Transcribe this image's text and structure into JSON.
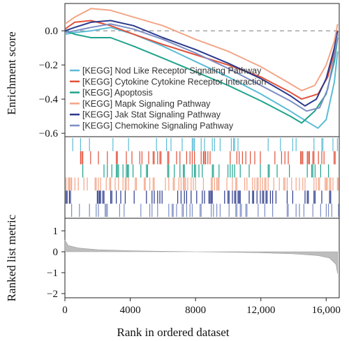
{
  "chart_data": {
    "type": "line",
    "x_label": "Rank in ordered dataset",
    "x_ticks": [
      0,
      4000,
      8000,
      12000,
      16000
    ],
    "x_tick_labels": [
      "0",
      "4000",
      "8000",
      "12,000",
      "16,000"
    ],
    "xlim": [
      0,
      16800
    ],
    "enrichment": {
      "ylabel": "Enrichment score",
      "ylim": [
        -0.62,
        0.16
      ],
      "y_ticks": [
        0.0,
        -0.2,
        -0.4,
        -0.6
      ],
      "y_tick_labels": [
        "0.0",
        "−0.2",
        "−0.4",
        "−0.6"
      ],
      "zero_line": true,
      "legend_position": "bottom-right",
      "series": [
        {
          "name": "[KEGG] Nod Like Receptor Signaling Pathway",
          "color": "#5bbcd6",
          "x": [
            0,
            600,
            1600,
            2800,
            4200,
            6000,
            8000,
            10000,
            12000,
            13800,
            14800,
            15500,
            16000,
            16500,
            16700
          ],
          "y": [
            -0.02,
            -0.01,
            0.0,
            0.02,
            -0.02,
            -0.09,
            -0.18,
            -0.27,
            -0.37,
            -0.47,
            -0.53,
            -0.57,
            -0.52,
            -0.3,
            -0.12
          ]
        },
        {
          "name": "[KEGG] Cytokine Cytokine Receptor Interaction",
          "color": "#e2513a",
          "x": [
            0,
            600,
            1600,
            2800,
            4200,
            6000,
            8000,
            10000,
            12000,
            13800,
            14500,
            15500,
            16100,
            16500,
            16700
          ],
          "y": [
            0.01,
            0.05,
            0.06,
            0.03,
            -0.02,
            -0.08,
            -0.14,
            -0.2,
            -0.27,
            -0.36,
            -0.4,
            -0.37,
            -0.27,
            -0.12,
            0.0
          ]
        },
        {
          "name": "[KEGG] Apoptosis",
          "color": "#1fa38c",
          "x": [
            0,
            600,
            1600,
            2800,
            4200,
            6000,
            8000,
            10000,
            12000,
            13800,
            14500,
            15300,
            16000,
            16500,
            16700
          ],
          "y": [
            0.0,
            -0.02,
            -0.04,
            -0.04,
            -0.09,
            -0.16,
            -0.24,
            -0.32,
            -0.41,
            -0.5,
            -0.54,
            -0.47,
            -0.37,
            -0.18,
            -0.04
          ]
        },
        {
          "name": "[KEGG] Mapk Signaling Pathway",
          "color": "#f4a587",
          "x": [
            0,
            600,
            1600,
            2800,
            4200,
            6000,
            8000,
            10000,
            12000,
            13800,
            14500,
            15300,
            16000,
            16500,
            16700
          ],
          "y": [
            0.04,
            0.08,
            0.13,
            0.12,
            0.08,
            0.03,
            -0.05,
            -0.12,
            -0.21,
            -0.31,
            -0.35,
            -0.32,
            -0.2,
            -0.06,
            0.04
          ]
        },
        {
          "name": "[KEGG] Jak Stat Signaling Pathway",
          "color": "#2b3a8c",
          "x": [
            0,
            600,
            1600,
            2800,
            4200,
            6000,
            8000,
            10000,
            12000,
            13800,
            14700,
            15400,
            16000,
            16500,
            16700
          ],
          "y": [
            0.0,
            0.02,
            0.05,
            0.06,
            0.03,
            -0.04,
            -0.11,
            -0.19,
            -0.28,
            -0.38,
            -0.44,
            -0.4,
            -0.28,
            -0.1,
            0.0
          ]
        },
        {
          "name": "[KEGG] Chemokine Signaling Pathway",
          "color": "#7d8dc4",
          "x": [
            0,
            600,
            1600,
            2800,
            4200,
            6000,
            8000,
            10000,
            12000,
            13800,
            14800,
            15600,
            16100,
            16500,
            16700
          ],
          "y": [
            -0.01,
            0.0,
            0.02,
            0.04,
            0.01,
            -0.05,
            -0.13,
            -0.22,
            -0.32,
            -0.41,
            -0.47,
            -0.45,
            -0.34,
            -0.15,
            -0.02
          ]
        }
      ]
    },
    "hit_rows": [
      {
        "color": "#5bbcd6",
        "density": 0.09
      },
      {
        "color": "#e2513a",
        "density": 0.22
      },
      {
        "color": "#1fa38c",
        "density": 0.17
      },
      {
        "color": "#f4a587",
        "density": 0.28
      },
      {
        "color": "#2b3a8c",
        "density": 0.2
      },
      {
        "color": "#7d8dc4",
        "density": 0.17
      }
    ],
    "ranked_metric": {
      "ylabel": "Ranked list metric",
      "ylim": [
        -2.2,
        1.6
      ],
      "y_ticks": [
        1,
        0,
        -1,
        -2
      ],
      "y_tick_labels": [
        "1",
        "0",
        "−1",
        "−2"
      ],
      "fill_color": "#bdbdbd",
      "x": [
        0,
        200,
        800,
        2000,
        4000,
        6000,
        8000,
        10000,
        12000,
        14000,
        15500,
        16200,
        16600,
        16700
      ],
      "y": [
        0.55,
        0.3,
        0.18,
        0.1,
        0.05,
        0.02,
        0.0,
        -0.02,
        -0.05,
        -0.1,
        -0.18,
        -0.3,
        -0.6,
        -1.05
      ]
    }
  }
}
